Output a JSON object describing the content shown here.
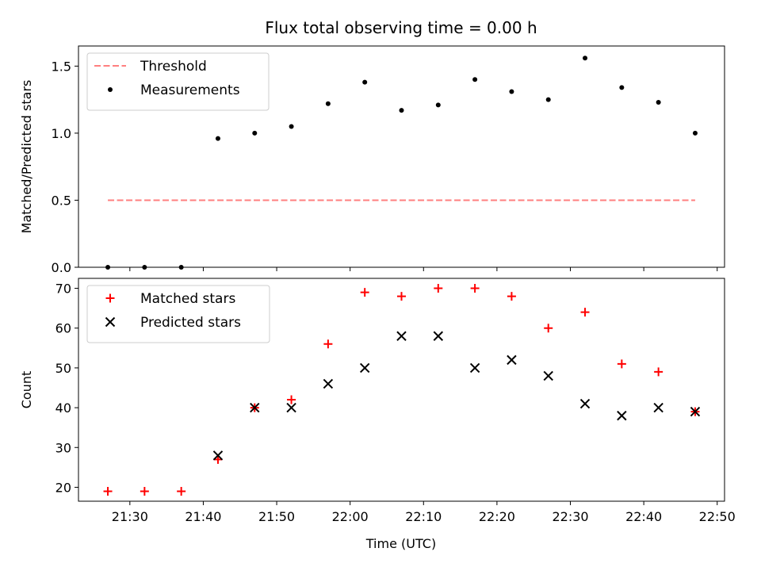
{
  "chart_data": {
    "type": "scatter",
    "title": "Flux total observing time = 0.00 h",
    "xlabel": "Time (UTC)",
    "x_tick_labels": [
      "21:30",
      "21:40",
      "21:50",
      "22:00",
      "22:10",
      "22:20",
      "22:30",
      "22:40",
      "22:50"
    ],
    "x_tick_minutes": [
      1290,
      1300,
      1310,
      1320,
      1330,
      1340,
      1350,
      1360,
      1370
    ],
    "x_range_minutes": [
      1283,
      1371
    ],
    "times": [
      "21:27",
      "21:32",
      "21:37",
      "21:42",
      "21:47",
      "21:52",
      "21:57",
      "22:02",
      "22:07",
      "22:12",
      "22:17",
      "22:22",
      "22:27",
      "22:32",
      "22:37",
      "22:42",
      "22:47"
    ],
    "time_minutes": [
      1287,
      1292,
      1297,
      1302,
      1307,
      1312,
      1317,
      1322,
      1327,
      1332,
      1337,
      1342,
      1347,
      1352,
      1357,
      1362,
      1367
    ],
    "panels": [
      {
        "ylabel": "Matched/Predicted stars",
        "ylim": [
          0.0,
          1.65
        ],
        "yticks": [
          0.0,
          0.5,
          1.0,
          1.5
        ],
        "ytick_labels": [
          "0.0",
          "0.5",
          "1.0",
          "1.5"
        ],
        "legend_position": "upper-left",
        "series": [
          {
            "name": "Threshold",
            "kind": "line",
            "style": "dashed",
            "color": "#ff7f7f",
            "values": [
              0.5,
              0.5,
              0.5,
              0.5,
              0.5,
              0.5,
              0.5,
              0.5,
              0.5,
              0.5,
              0.5,
              0.5,
              0.5,
              0.5,
              0.5,
              0.5,
              0.5
            ]
          },
          {
            "name": "Measurements",
            "kind": "scatter",
            "marker": "dot",
            "color": "#000000",
            "values": [
              0.0,
              0.0,
              0.0,
              0.96,
              1.0,
              1.05,
              1.22,
              1.38,
              1.17,
              1.21,
              1.4,
              1.31,
              1.25,
              1.56,
              1.34,
              1.23,
              1.0
            ]
          }
        ]
      },
      {
        "ylabel": "Count",
        "ylim": [
          16.5,
          72.5
        ],
        "yticks": [
          20,
          30,
          40,
          50,
          60,
          70
        ],
        "ytick_labels": [
          "20",
          "30",
          "40",
          "50",
          "60",
          "70"
        ],
        "legend_position": "upper-left",
        "series": [
          {
            "name": "Matched stars",
            "kind": "scatter",
            "marker": "plus",
            "color": "#ff0000",
            "values": [
              19,
              19,
              19,
              27,
              40,
              42,
              56,
              69,
              68,
              70,
              70,
              68,
              60,
              64,
              51,
              49,
              39
            ]
          },
          {
            "name": "Predicted stars",
            "kind": "scatter",
            "marker": "x",
            "color": "#000000",
            "values": [
              null,
              null,
              null,
              28,
              40,
              40,
              46,
              50,
              58,
              58,
              50,
              52,
              48,
              41,
              38,
              40,
              39
            ]
          }
        ]
      }
    ]
  }
}
